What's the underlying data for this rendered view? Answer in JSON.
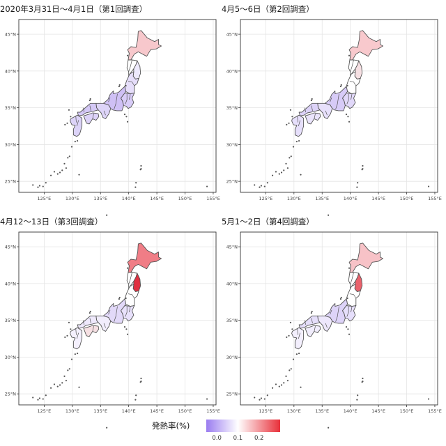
{
  "colors": {
    "low": "#9a7cf0",
    "mid": "#ffffff",
    "high": "#e8303a",
    "outline": "#555555",
    "grid": "#e4e4e4",
    "frame": "#333333"
  },
  "axes": {
    "lat_ticks": [
      {
        "value": 25,
        "label": "25°N"
      },
      {
        "value": 30,
        "label": "30°N"
      },
      {
        "value": 35,
        "label": "35°N"
      },
      {
        "value": 40,
        "label": "40°N"
      },
      {
        "value": 45,
        "label": "45°N"
      }
    ],
    "lon_ticks": [
      {
        "value": 125,
        "label": "125°E"
      },
      {
        "value": 130,
        "label": "130°E"
      },
      {
        "value": 135,
        "label": "135°E"
      },
      {
        "value": 140,
        "label": "140°E"
      },
      {
        "value": 145,
        "label": "145°E"
      },
      {
        "value": 150,
        "label": "150°E"
      },
      {
        "value": 155,
        "label": "155°E"
      }
    ]
  },
  "panels": [
    {
      "title": "2020年3月31日～4月1日（第1回調査）",
      "regions": {
        "hokkaido": "#f7c8cc",
        "tohoku_north": "#ffffff",
        "iwate": "#eeeafd",
        "tohoku_south": "#e6defa",
        "kanto": "#d8ccf7",
        "chubu": "#cfc0f5",
        "kansai": "#ddd4f8",
        "chugoku": "#d4c8f6",
        "shikoku": "#ddd3f8",
        "kyushu": "#dcd3f8"
      }
    },
    {
      "title": "4月5～6日（第2回調査）",
      "regions": {
        "hokkaido": "#f8c9cd",
        "tohoku_north": "#ffffff",
        "iwate": "#f6e0e3",
        "tohoku_south": "#ffffff",
        "kanto": "#e1d8f9",
        "chubu": "#d7cbf7",
        "kansai": "#e7e0fb",
        "chugoku": "#dcd2f8",
        "shikoku": "#eae4fb",
        "kyushu": "#e6dffb"
      }
    },
    {
      "title": "4月12～13日（第3回調査）",
      "regions": {
        "hokkaido": "#f07d86",
        "tohoku_north": "#ffffff",
        "iwate": "#e03040",
        "tohoku_south": "#ffffff",
        "kanto": "#e8e1fb",
        "chubu": "#e2d9f9",
        "kansai": "#f1edfc",
        "chugoku": "#efe9fc",
        "shikoku": "#f6e0e3",
        "kyushu": "#f4f0fd"
      }
    },
    {
      "title": "5月1～2日（第4回調査）",
      "regions": {
        "hokkaido": "#f7c2c7",
        "tohoku_north": "#ffffff",
        "iwate": "#e9626c",
        "tohoku_south": "#ffffff",
        "kanto": "#e6dffb",
        "chubu": "#ddd3f8",
        "kansai": "#ede7fc",
        "chugoku": "#e5defa",
        "shikoku": "#f1edfc",
        "kyushu": "#f3effd"
      }
    }
  ],
  "legend": {
    "title": "発熱率(%)",
    "ticks": [
      {
        "value": 0.0,
        "label": "0.0"
      },
      {
        "value": 0.1,
        "label": "0.1"
      },
      {
        "value": 0.2,
        "label": "0.2"
      }
    ],
    "min": -0.05,
    "max": 0.3
  }
}
